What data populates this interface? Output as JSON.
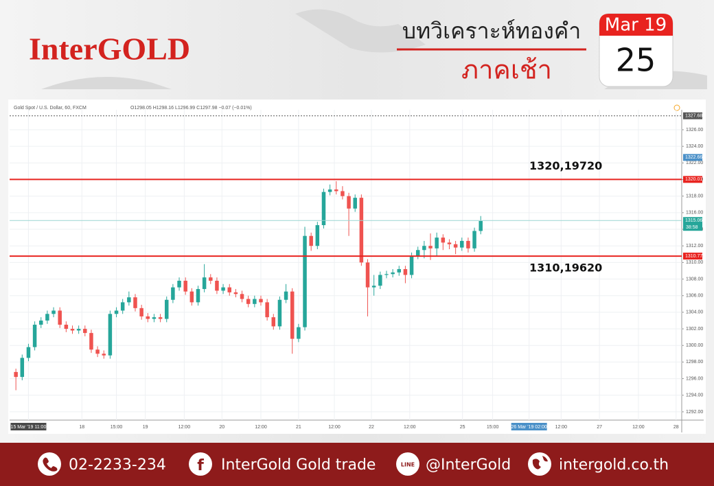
{
  "header": {
    "logo": "InterGOLD",
    "title": "บทวิเคราะห์ทองคำ",
    "subtitle": "ภาคเช้า",
    "calendar_month": "Mar 19",
    "calendar_day": "25"
  },
  "footer": {
    "phone": "02-2233-234",
    "facebook": "InterGold Gold trade",
    "line": "@InterGold",
    "website": "intergold.co.th"
  },
  "chart_data": {
    "type": "candlestick",
    "symbol": "Gold Spot / U.S. Dollar, 60, FXCM",
    "ohlc_text": "O1298.05 H1298.16 L1296.99 C1297.98 −0.07 (−0.01%)",
    "up_color": "#26a69a",
    "down_color": "#ef5350",
    "grid": true,
    "x": [
      0,
      1,
      2,
      3,
      4,
      5,
      6,
      7,
      8,
      9,
      10,
      11,
      12,
      13,
      14,
      15,
      16,
      17,
      18,
      19,
      20,
      21,
      22,
      23,
      24,
      25,
      26,
      27,
      28,
      29,
      30,
      31,
      32,
      33,
      34,
      35,
      36,
      37,
      38,
      39,
      40,
      41,
      42,
      43,
      44,
      45,
      46,
      47,
      48,
      49,
      50,
      51,
      52,
      53,
      54,
      55,
      56,
      57,
      58,
      59,
      60,
      61,
      62,
      63,
      64,
      65,
      66,
      67,
      68,
      69,
      70,
      71,
      72,
      73,
      74
    ],
    "open": [
      1296.8,
      1296.2,
      1298.5,
      1299.8,
      1302.5,
      1303,
      1303.8,
      1304.2,
      1302.5,
      1302,
      1301.8,
      1302,
      1301.5,
      1299.5,
      1299,
      1298.8,
      1303.8,
      1304.2,
      1305.2,
      1305.8,
      1304.5,
      1303.5,
      1303.2,
      1303.4,
      1303.2,
      1305.5,
      1307,
      1307.8,
      1306.5,
      1305.2,
      1306.8,
      1308.2,
      1307.8,
      1306.6,
      1307,
      1306.4,
      1306.2,
      1305.6,
      1305,
      1305.6,
      1305.2,
      1303.4,
      1302.3,
      1305.5,
      1306.5,
      1300.8,
      1302.2,
      1313.2,
      1312,
      1314.5,
      1318.5,
      1318.8,
      1318.6,
      1318,
      1316.5,
      1317.8,
      1310,
      1307,
      1307.2,
      1308.5,
      1308.6,
      1308.8,
      1309.2,
      1308.5,
      1310.8,
      1311.5,
      1312,
      1311.7,
      1313,
      1312.4,
      1312.2,
      1311.8,
      1312.6,
      1311.7,
      1313.8
    ],
    "high": [
      1297.2,
      1298.9,
      1300.2,
      1302.9,
      1303.4,
      1304.2,
      1304.6,
      1304.6,
      1302.9,
      1302.4,
      1302.4,
      1302.4,
      1301.9,
      1299.9,
      1299.4,
      1304.2,
      1304.6,
      1305.6,
      1306.5,
      1306.2,
      1304.9,
      1303.9,
      1303.8,
      1303.8,
      1305.9,
      1307.4,
      1308.2,
      1308.2,
      1306.9,
      1307.2,
      1309.8,
      1308.6,
      1308.2,
      1307.4,
      1307.4,
      1306.8,
      1306.6,
      1306,
      1306,
      1306,
      1305.6,
      1303.8,
      1305.9,
      1307.4,
      1306.9,
      1302.6,
      1314.3,
      1313.6,
      1314.9,
      1318.9,
      1319.4,
      1319.8,
      1319.2,
      1318.4,
      1318.2,
      1318.2,
      1310.4,
      1308.5,
      1308.9,
      1309,
      1309.2,
      1309.6,
      1309.6,
      1311.2,
      1311.9,
      1312.6,
      1313.5,
      1313.6,
      1313.4,
      1312.8,
      1312.6,
      1313,
      1313,
      1314.2,
      1315.6
    ],
    "low": [
      1294.6,
      1295.8,
      1298.1,
      1299.4,
      1302.1,
      1302.6,
      1303.4,
      1302.1,
      1301.6,
      1301.4,
      1301.4,
      1301.1,
      1299.1,
      1298.6,
      1298.4,
      1298.4,
      1303.4,
      1303.8,
      1304.8,
      1304.1,
      1303.1,
      1302.8,
      1302.8,
      1302.8,
      1302.8,
      1305.1,
      1306.6,
      1306.1,
      1304.8,
      1304.8,
      1306.4,
      1307.4,
      1306.2,
      1306.2,
      1306,
      1305.8,
      1305.2,
      1304.6,
      1304.6,
      1304.8,
      1303,
      1301.9,
      1301.9,
      1305.1,
      1299,
      1300.4,
      1301.8,
      1311.4,
      1311.6,
      1314.1,
      1318.1,
      1318.2,
      1317.6,
      1313.2,
      1316.1,
      1309.6,
      1303.5,
      1306,
      1306.8,
      1308.1,
      1308.2,
      1308.4,
      1307.5,
      1308.1,
      1310.4,
      1310.5,
      1310.3,
      1310.8,
      1311.5,
      1311.6,
      1311,
      1311.4,
      1311.2,
      1311.3,
      1313.4
    ],
    "close": [
      1296.2,
      1298.5,
      1299.8,
      1302.5,
      1303,
      1303.8,
      1304.2,
      1302.5,
      1302,
      1301.8,
      1302,
      1301.5,
      1299.5,
      1299,
      1298.8,
      1303.8,
      1304.2,
      1305.2,
      1305.8,
      1304.5,
      1303.5,
      1303.2,
      1303.4,
      1303.2,
      1305.5,
      1307,
      1307.8,
      1306.5,
      1305.2,
      1306.8,
      1308.2,
      1307.8,
      1306.6,
      1307,
      1306.4,
      1306.2,
      1305.6,
      1305,
      1305.6,
      1305.2,
      1303.4,
      1302.3,
      1305.5,
      1306.5,
      1300.8,
      1302.2,
      1313.2,
      1312,
      1314.5,
      1318.5,
      1318.8,
      1318.6,
      1318,
      1316.5,
      1317.8,
      1310,
      1307,
      1307.2,
      1308.5,
      1308.6,
      1308.8,
      1309.2,
      1308.5,
      1310.8,
      1311.5,
      1312,
      1311.7,
      1313,
      1312.4,
      1312.2,
      1311.8,
      1312.6,
      1311.7,
      1313.8,
      1315
    ],
    "xlim": [
      -1,
      106
    ],
    "ylim": [
      1291,
      1328.4
    ],
    "xticks": [
      {
        "value": 2,
        "label": "15 Mar '19 11:00"
      },
      {
        "value": 10.5,
        "label": "18"
      },
      {
        "value": 16,
        "label": "15:00"
      },
      {
        "value": 20.6,
        "label": "19"
      },
      {
        "value": 26.8,
        "label": "12:00"
      },
      {
        "value": 32.8,
        "label": "20"
      },
      {
        "value": 39,
        "label": "12:00"
      },
      {
        "value": 45,
        "label": "21"
      },
      {
        "value": 50.7,
        "label": "12:00"
      },
      {
        "value": 56.6,
        "label": "22"
      },
      {
        "value": 62.7,
        "label": "12:00"
      },
      {
        "value": 71.1,
        "label": "25"
      },
      {
        "value": 75.9,
        "label": "15:00"
      },
      {
        "value": 81.7,
        "label": "26 Mar '19 02:00"
      },
      {
        "value": 86.8,
        "label": "12:00"
      },
      {
        "value": 92.9,
        "label": "27"
      },
      {
        "value": 99.1,
        "label": "12:00"
      },
      {
        "value": 105.1,
        "label": "28"
      }
    ],
    "yticks": [
      {
        "value": 1292,
        "label": "1292.00"
      },
      {
        "value": 1294,
        "label": "1294.00"
      },
      {
        "value": 1296,
        "label": "1296.00"
      },
      {
        "value": 1298,
        "label": "1298.00"
      },
      {
        "value": 1300,
        "label": "1300.00"
      },
      {
        "value": 1302,
        "label": "1302.00"
      },
      {
        "value": 1304,
        "label": "1304.00"
      },
      {
        "value": 1306,
        "label": "1306.00"
      },
      {
        "value": 1308,
        "label": "1308.00"
      },
      {
        "value": 1310,
        "label": "1310.00"
      },
      {
        "value": 1312,
        "label": "1312.00"
      },
      {
        "value": 1314,
        "label": "1314.00"
      },
      {
        "value": 1316,
        "label": "1316.00"
      },
      {
        "value": 1318,
        "label": "1318.00"
      },
      {
        "value": 1320,
        "label": "1320.00"
      },
      {
        "value": 1322,
        "label": "1322.00"
      },
      {
        "value": 1324,
        "label": "1324.00"
      },
      {
        "value": 1326,
        "label": "1326.00"
      }
    ],
    "levels": [
      {
        "value": 1320.01,
        "label": "1320,19720",
        "color": "#e8231f"
      },
      {
        "value": 1310.77,
        "label": "1310,19620",
        "color": "#e8231f"
      }
    ],
    "price_tags": [
      {
        "value": 1327.68,
        "color": "#555555"
      },
      {
        "value": 1322.66,
        "color": "#4a90c8"
      },
      {
        "value": 1320.01,
        "color": "#e8231f"
      },
      {
        "value": 1315.06,
        "color": "#26a69a",
        "countdown": "38:58"
      },
      {
        "value": 1310.77,
        "color": "#e8231f"
      }
    ]
  }
}
